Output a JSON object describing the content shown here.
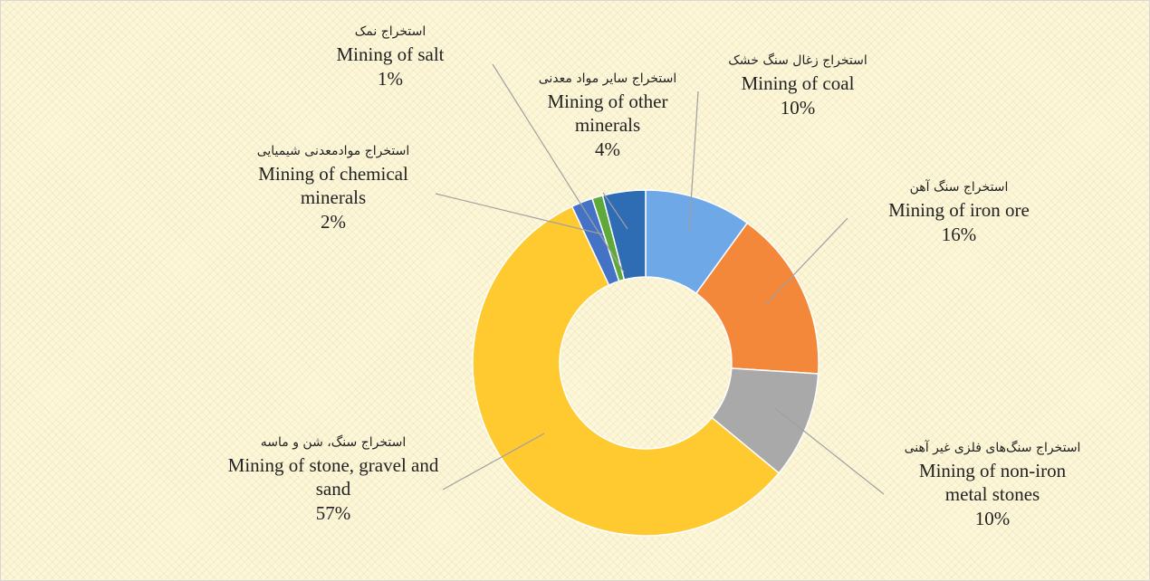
{
  "chart_data": {
    "type": "donut",
    "categories": [
      "Mining of coal",
      "Mining of iron ore",
      "Mining of non-iron metal stones",
      "Mining of stone, gravel and sand",
      "Mining of chemical minerals",
      "Mining of salt",
      "Mining of other minerals"
    ],
    "categories_fa": [
      "استخراج زغال سنگ خشک",
      "استخراج سنگ آهن",
      "استخراج سنگ‌های فلزی غیر آهنی",
      "استخراج سنگ، شن و ماسه",
      "استخراج موادمعدنی شیمیایی",
      "استخراج نمک",
      "استخراج سایر مواد معدنی"
    ],
    "values": [
      10,
      16,
      10,
      57,
      2,
      1,
      4
    ],
    "value_labels": [
      "10%",
      "16%",
      "10%",
      "57%",
      "2%",
      "1%",
      "4%"
    ],
    "colors": [
      "#6fa8e6",
      "#f4883a",
      "#a9a9a9",
      "#ffc930",
      "#4472c4",
      "#5fa83a",
      "#2e6db4"
    ]
  }
}
